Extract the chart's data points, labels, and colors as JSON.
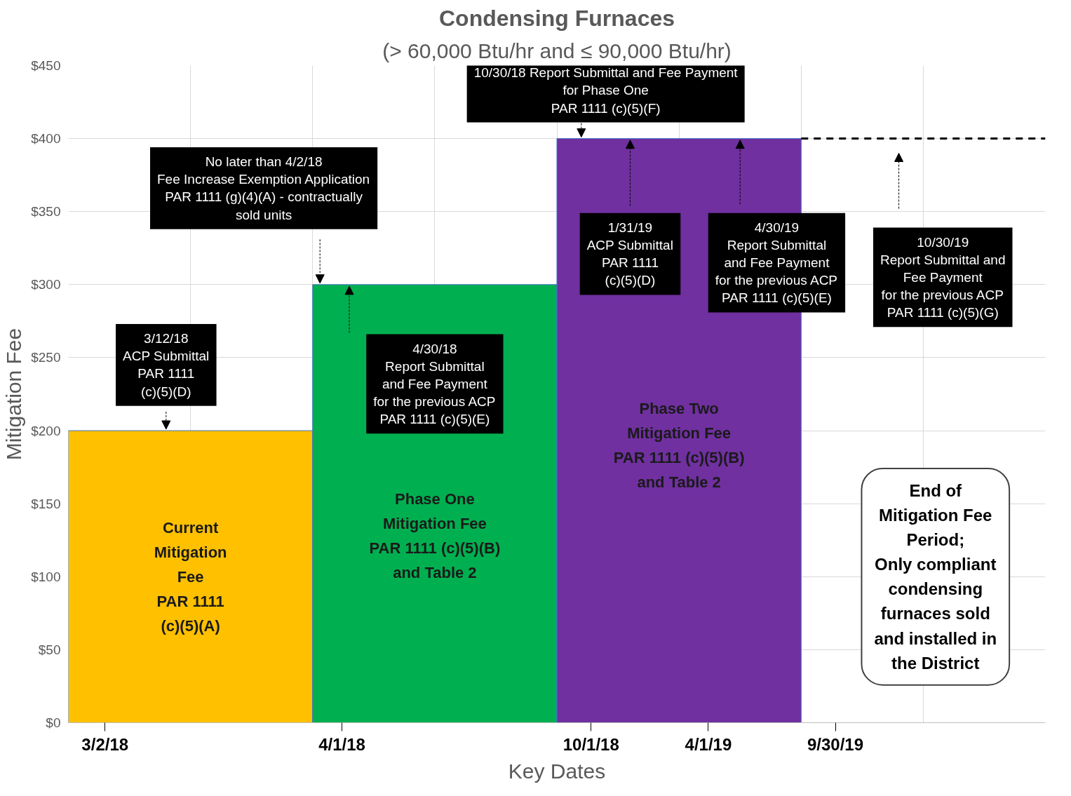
{
  "chart_data": {
    "type": "bar",
    "title": "Condensing Furnaces",
    "subtitle": "(> 60,000 Btu/hr and ≤ 90,000 Btu/hr)",
    "xlabel": "Key Dates",
    "ylabel": "Mitigation Fee",
    "categories": [
      null,
      null,
      null,
      null
    ],
    "values": [
      200,
      300,
      400,
      null
    ],
    "colors": [
      "#ffc000",
      "#00b050",
      "#7030a0",
      "#ffffff"
    ],
    "ylim": [
      0,
      450
    ],
    "yticks": [
      {
        "value": 0,
        "label": "$0"
      },
      {
        "value": 50,
        "label": "$50"
      },
      {
        "value": 100,
        "label": "$100"
      },
      {
        "value": 150,
        "label": "$150"
      },
      {
        "value": 200,
        "label": "$200"
      },
      {
        "value": 250,
        "label": "$250"
      },
      {
        "value": 300,
        "label": "$300"
      },
      {
        "value": 350,
        "label": "$350"
      },
      {
        "value": 400,
        "label": "$400"
      },
      {
        "value": 450,
        "label": "$450"
      }
    ],
    "grid": true,
    "ref_lines": [
      {
        "axis": "y",
        "value": 400,
        "line_style": "dashed",
        "color": "#000000"
      }
    ],
    "annotations": [
      "Current\nMitigation\nFee\nPAR 1111\n(c)(5)(A)",
      "Phase One\nMitigation Fee\nPAR 1111 (c)(5)(B)\nand Table 2",
      "Phase Two\nMitigation Fee\nPAR 1111 (c)(5)(B)\nand Table 2",
      "3/12/18\nACP Submittal\nPAR 1111\n(c)(5)(D)",
      "No later than 4/2/18\nFee Increase Exemption Application\nPAR 1111 (g)(4)(A) - contractually\nsold units",
      "4/30/18\nReport Submittal\nand Fee Payment\nfor the previous ACP\nPAR 1111 (c)(5)(E)",
      "10/30/18 Report Submittal and Fee Payment\nfor Phase One\nPAR 1111 (c)(5)(F)",
      "1/31/19\nACP Submittal\nPAR 1111\n(c)(5)(D)",
      "4/30/19\nReport Submittal\nand Fee Payment\nfor the previous ACP\nPAR 1111 (c)(5)(E)",
      "10/30/19\nReport Submittal and\nFee Payment\nfor the previous ACP\nPAR 1111 (c)(5)(G)",
      "End of\nMitigation Fee\nPeriod;\nOnly compliant\ncondensing\nfurnaces sold\nand installed in\nthe District",
      "3/2/18",
      "4/1/18",
      "10/1/18",
      "4/1/19",
      "9/30/19"
    ]
  }
}
